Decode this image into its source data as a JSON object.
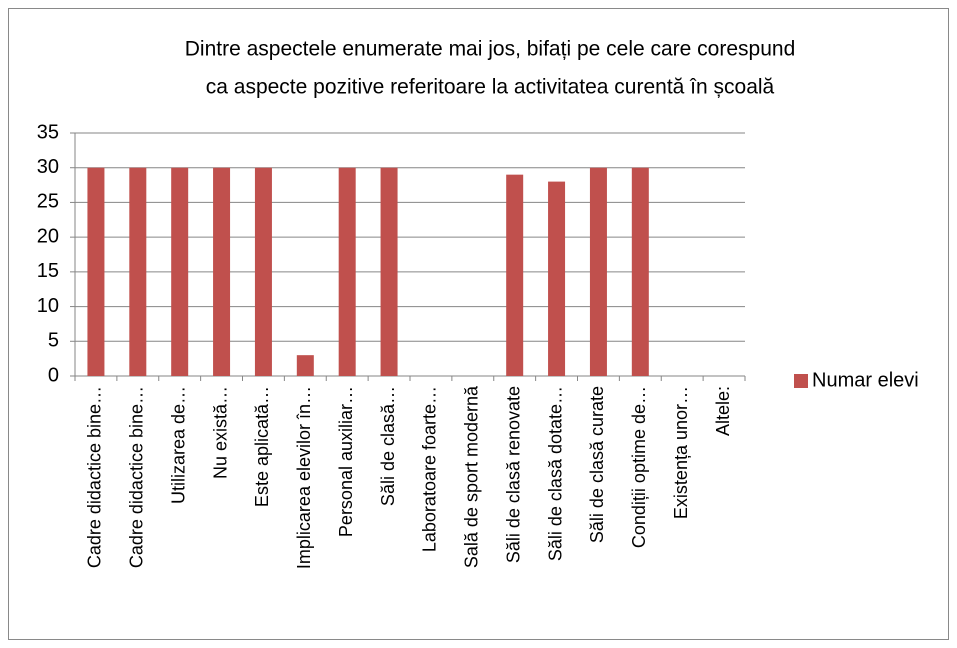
{
  "chart_data": {
    "type": "bar",
    "title": [
      "Dintre aspectele enumerate mai jos, bifați pe cele care corespund",
      "ca aspecte pozitive referitoare la activitatea curentă în școală"
    ],
    "categories": [
      "Cadre didactice bine…",
      "Cadre didactice bine…",
      "Utilizarea de…",
      "Nu există…",
      "Este aplicată…",
      "Implicarea elevilor în…",
      "Personal auxiliar…",
      "Săli de clasă…",
      "Laboratoare foarte…",
      "Sală de sport modernă",
      "Săli de clasă renovate",
      "Săli de clasă dotate…",
      "Săli de clasă curate",
      "Condiții optime de…",
      "Existența unor…",
      "Altele:"
    ],
    "series": [
      {
        "name": "Numar elevi",
        "color": "#c0504d",
        "values": [
          30,
          30,
          30,
          30,
          30,
          3,
          30,
          30,
          0,
          0,
          29,
          28,
          30,
          30,
          0,
          0
        ]
      }
    ],
    "ylim": [
      0,
      35
    ],
    "yticks": [
      0,
      5,
      10,
      15,
      20,
      25,
      30,
      35
    ],
    "grid": true,
    "legend": "right"
  }
}
